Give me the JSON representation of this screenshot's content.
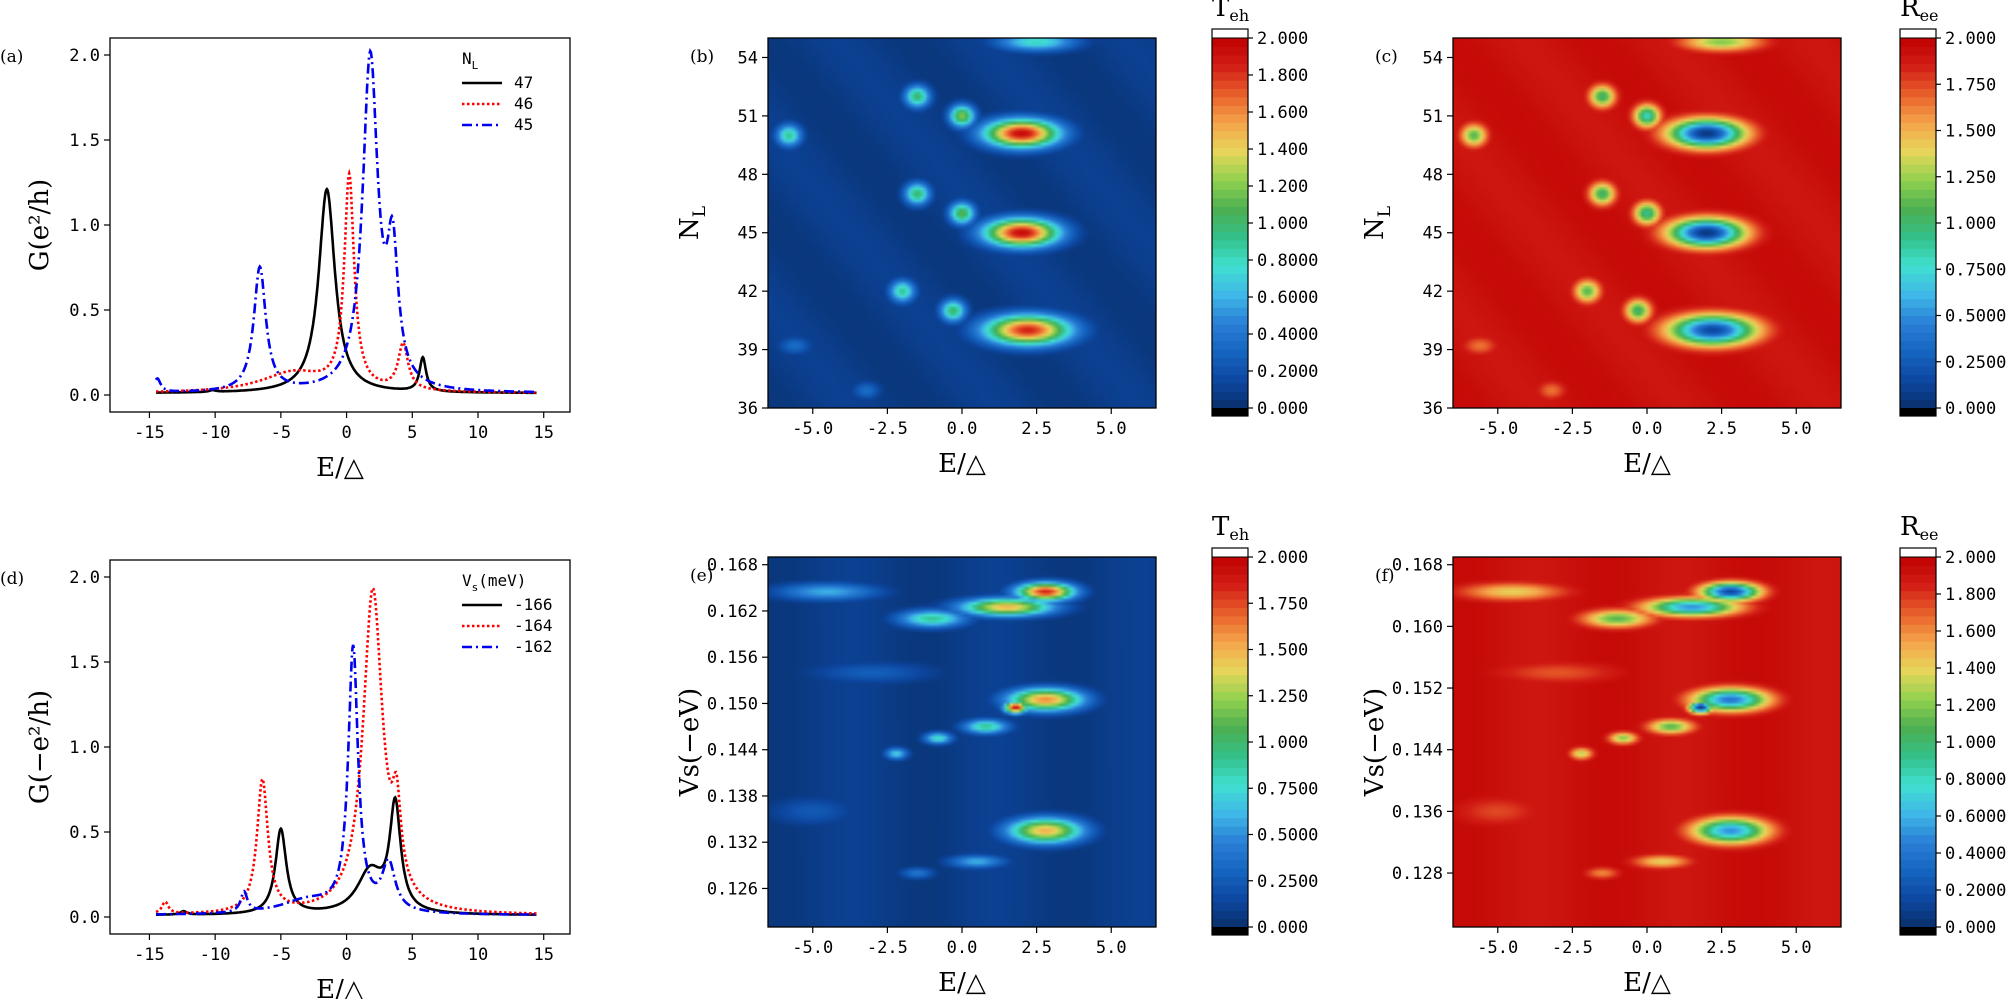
{
  "figure": {
    "name": "transport-figure"
  },
  "colormaps": {
    "jet_stops": [
      "#08306b",
      "#0d47a1",
      "#1565c0",
      "#2a7fd6",
      "#3fb8e8",
      "#40e0d0",
      "#33c08a",
      "#4caf50",
      "#8fd14f",
      "#e6d65a",
      "#f5a54a",
      "#e9622c",
      "#d21f16",
      "#c00000"
    ],
    "clip_low": "#000000",
    "clip_high": "#ffffff"
  },
  "chart_data": [
    {
      "id": "a",
      "type": "line",
      "panel_label": "(a)",
      "xlabel": "E/△",
      "ylabel": "G(e²/h)",
      "xlim": [
        -18,
        17
      ],
      "ylim": [
        -0.1,
        2.1
      ],
      "xticks": [
        "-15",
        "-10",
        "-5",
        "0",
        "5",
        "10",
        "15"
      ],
      "xtick_values": [
        -15,
        -10,
        -5,
        0,
        5,
        10,
        15
      ],
      "yticks": [
        "0.0",
        "0.5",
        "1.0",
        "1.5",
        "2.0"
      ],
      "ytick_values": [
        0,
        0.5,
        1.0,
        1.5,
        2.0
      ],
      "legend_title": "N_L",
      "legend_title_main": "N",
      "legend_title_sub": "L",
      "series": [
        {
          "name": "47",
          "color": "#000000",
          "dash": "solid",
          "base": 0.01,
          "peaks": [
            [
              -1.5,
              1.2,
              0.75
            ],
            [
              5.8,
              0.2,
              0.3
            ],
            [
              -10.2,
              0.01,
              0.3
            ]
          ]
        },
        {
          "name": "46",
          "color": "#ff0000",
          "dash": "dotted",
          "base": 0.01,
          "peaks": [
            [
              0.2,
              1.25,
              0.45
            ],
            [
              4.3,
              0.27,
              0.45
            ],
            [
              -4.0,
              0.12,
              3.0
            ]
          ]
        },
        {
          "name": "45",
          "color": "#0000ee",
          "dash": "dashdot",
          "base": 0.01,
          "peaks": [
            [
              -6.6,
              0.73,
              0.55
            ],
            [
              1.8,
              1.95,
              0.7
            ],
            [
              3.5,
              0.75,
              0.5
            ],
            [
              -14.4,
              0.08,
              0.3
            ]
          ]
        }
      ]
    },
    {
      "id": "d",
      "type": "line",
      "panel_label": "(d)",
      "xlabel": "E/△",
      "ylabel": "G(−e²/h)",
      "xlim": [
        -18,
        17
      ],
      "ylim": [
        -0.1,
        2.1
      ],
      "xticks": [
        "-15",
        "-10",
        "-5",
        "0",
        "5",
        "10",
        "15"
      ],
      "xtick_values": [
        -15,
        -10,
        -5,
        0,
        5,
        10,
        15
      ],
      "yticks": [
        "0.0",
        "0.5",
        "1.0",
        "1.5",
        "2.0"
      ],
      "ytick_values": [
        0,
        0.5,
        1.0,
        1.5,
        2.0
      ],
      "legend_title": "V_s(meV)",
      "legend_title_main": "V",
      "legend_title_sub": "s",
      "legend_title_tail": "(meV)",
      "series": [
        {
          "name": "-166",
          "color": "#000000",
          "dash": "solid",
          "base": 0.01,
          "peaks": [
            [
              -5.0,
              0.5,
              0.5
            ],
            [
              3.7,
              0.62,
              0.5
            ],
            [
              1.8,
              0.25,
              1.2
            ],
            [
              -12.4,
              0.02,
              0.3
            ]
          ]
        },
        {
          "name": "-164",
          "color": "#ff0000",
          "dash": "dotted",
          "base": 0.01,
          "peaks": [
            [
              -6.4,
              0.78,
              0.5
            ],
            [
              2.0,
              1.9,
              0.9
            ],
            [
              3.8,
              0.45,
              0.4
            ],
            [
              -13.8,
              0.07,
              0.3
            ]
          ]
        },
        {
          "name": "-162",
          "color": "#0000ee",
          "dash": "dashdot",
          "base": 0.01,
          "peaks": [
            [
              0.5,
              1.55,
              0.45
            ],
            [
              -7.8,
              0.12,
              0.3
            ],
            [
              3.2,
              0.28,
              0.6
            ],
            [
              -3.0,
              0.08,
              2.5
            ]
          ]
        }
      ]
    },
    {
      "id": "b",
      "type": "heatmap",
      "panel_label": "(b)",
      "invert": false,
      "xlabel": "E/△",
      "ylabel": "N_L",
      "ylabel_main": "N",
      "ylabel_sub": "L",
      "xlim": [
        -6.5,
        6.5
      ],
      "ylim": [
        36,
        55
      ],
      "xticks": [
        "-5.0",
        "-2.5",
        "0.0",
        "2.5",
        "5.0"
      ],
      "xtick_values": [
        -5,
        -2.5,
        0,
        2.5,
        5
      ],
      "yticks": [
        "36",
        "39",
        "42",
        "45",
        "48",
        "51",
        "54"
      ],
      "ytick_values": [
        36,
        39,
        42,
        45,
        48,
        51,
        54
      ],
      "blobs": [
        [
          -5.8,
          50.0,
          0.45,
          0.6,
          0.9
        ],
        [
          -1.5,
          52.0,
          0.45,
          0.6,
          1.0
        ],
        [
          0.0,
          51.0,
          0.45,
          0.6,
          1.2
        ],
        [
          2.0,
          50.1,
          1.3,
          0.75,
          1.95
        ],
        [
          2.5,
          54.8,
          1.4,
          0.5,
          0.8
        ],
        [
          -1.5,
          47.0,
          0.45,
          0.6,
          1.0
        ],
        [
          0.0,
          46.0,
          0.45,
          0.6,
          1.1
        ],
        [
          2.0,
          45.0,
          1.3,
          0.75,
          1.95
        ],
        [
          -2.0,
          42.0,
          0.45,
          0.6,
          0.9
        ],
        [
          -0.3,
          41.0,
          0.45,
          0.6,
          1.0
        ],
        [
          2.2,
          40.0,
          1.5,
          0.8,
          1.85
        ],
        [
          -5.6,
          39.2,
          0.6,
          0.5,
          0.35
        ],
        [
          -3.2,
          36.9,
          0.5,
          0.5,
          0.35
        ]
      ],
      "colorbar": {
        "title_main": "T",
        "title_sub": "eh",
        "vmin": 0,
        "vmax": 2.0,
        "ticks": [
          "2.000",
          "1.800",
          "1.600",
          "1.400",
          "1.200",
          "1.000",
          "0.8000",
          "0.6000",
          "0.4000",
          "0.2000",
          "0.000"
        ],
        "tick_values": [
          2.0,
          1.8,
          1.6,
          1.4,
          1.2,
          1.0,
          0.8,
          0.6,
          0.4,
          0.2,
          0.0
        ]
      }
    },
    {
      "id": "c",
      "type": "heatmap",
      "panel_label": "(c)",
      "invert": true,
      "xlabel": "E/△",
      "ylabel": "N_L",
      "ylabel_main": "N",
      "ylabel_sub": "L",
      "xlim": [
        -6.5,
        6.5
      ],
      "ylim": [
        36,
        55
      ],
      "xticks": [
        "-5.0",
        "-2.5",
        "0.0",
        "2.5",
        "5.0"
      ],
      "xtick_values": [
        -5,
        -2.5,
        0,
        2.5,
        5
      ],
      "yticks": [
        "36",
        "39",
        "42",
        "45",
        "48",
        "51",
        "54"
      ],
      "ytick_values": [
        36,
        39,
        42,
        45,
        48,
        51,
        54
      ],
      "blobs": [
        [
          -5.8,
          50.0,
          0.45,
          0.6,
          0.9
        ],
        [
          -1.5,
          52.0,
          0.45,
          0.6,
          1.0
        ],
        [
          0.0,
          51.0,
          0.45,
          0.6,
          1.2
        ],
        [
          2.0,
          50.1,
          1.3,
          0.75,
          1.95
        ],
        [
          2.5,
          54.8,
          1.4,
          0.5,
          0.8
        ],
        [
          -1.5,
          47.0,
          0.45,
          0.6,
          1.0
        ],
        [
          0.0,
          46.0,
          0.45,
          0.6,
          1.1
        ],
        [
          2.0,
          45.0,
          1.3,
          0.75,
          1.95
        ],
        [
          -2.0,
          42.0,
          0.45,
          0.6,
          0.9
        ],
        [
          -0.3,
          41.0,
          0.45,
          0.6,
          1.0
        ],
        [
          2.2,
          40.0,
          1.5,
          0.8,
          1.85
        ],
        [
          -5.6,
          39.2,
          0.6,
          0.5,
          0.35
        ],
        [
          -3.2,
          36.9,
          0.5,
          0.5,
          0.35
        ]
      ],
      "colorbar": {
        "title_main": "R",
        "title_sub": "ee",
        "vmin": 0,
        "vmax": 2.0,
        "ticks": [
          "2.000",
          "1.750",
          "1.500",
          "1.250",
          "1.000",
          "0.7500",
          "0.5000",
          "0.2500",
          "0.000"
        ],
        "tick_values": [
          2.0,
          1.75,
          1.5,
          1.25,
          1.0,
          0.75,
          0.5,
          0.25,
          0.0
        ]
      }
    },
    {
      "id": "e",
      "type": "heatmap",
      "panel_label": "(e)",
      "invert": false,
      "xlabel": "E/△",
      "ylabel": "Vs(−eV)",
      "xlim": [
        -6.5,
        6.5
      ],
      "ylim": [
        0.121,
        0.169
      ],
      "xticks": [
        "-5.0",
        "-2.5",
        "0.0",
        "2.5",
        "5.0"
      ],
      "xtick_values": [
        -5,
        -2.5,
        0,
        2.5,
        5
      ],
      "yticks": [
        "0.126",
        "0.132",
        "0.138",
        "0.144",
        "0.150",
        "0.156",
        "0.162",
        "0.168"
      ],
      "ytick_values": [
        0.126,
        0.132,
        0.138,
        0.144,
        0.15,
        0.156,
        0.162,
        0.168
      ],
      "blobs": [
        [
          -4.5,
          0.1645,
          1.8,
          0.0012,
          0.6
        ],
        [
          -1.0,
          0.161,
          1.2,
          0.0012,
          0.9
        ],
        [
          1.5,
          0.1625,
          1.6,
          0.0012,
          1.5
        ],
        [
          2.8,
          0.1645,
          1.0,
          0.0012,
          1.85
        ],
        [
          -2.2,
          0.1435,
          0.4,
          0.0008,
          0.7
        ],
        [
          -0.8,
          0.1455,
          0.5,
          0.0008,
          0.8
        ],
        [
          0.8,
          0.147,
          0.8,
          0.001,
          0.9
        ],
        [
          2.8,
          0.1505,
          1.3,
          0.0015,
          1.6
        ],
        [
          1.8,
          0.1495,
          0.4,
          0.0008,
          1.95
        ],
        [
          -1.5,
          0.128,
          0.6,
          0.0008,
          0.4
        ],
        [
          0.5,
          0.1295,
          1.0,
          0.0009,
          0.6
        ],
        [
          2.8,
          0.1335,
          1.3,
          0.0017,
          1.5
        ],
        [
          -3.0,
          0.154,
          2.2,
          0.0015,
          0.28
        ],
        [
          -5.0,
          0.136,
          1.5,
          0.002,
          0.25
        ]
      ],
      "colorbar": {
        "title_main": "T",
        "title_sub": "eh",
        "vmin": 0,
        "vmax": 2.0,
        "ticks": [
          "2.000",
          "1.750",
          "1.500",
          "1.250",
          "1.000",
          "0.7500",
          "0.5000",
          "0.2500",
          "0.000"
        ],
        "tick_values": [
          2.0,
          1.75,
          1.5,
          1.25,
          1.0,
          0.75,
          0.5,
          0.25,
          0.0
        ]
      }
    },
    {
      "id": "f",
      "type": "heatmap",
      "panel_label": "(f)",
      "invert": true,
      "xlabel": "E/△",
      "ylabel": "Vs(−eV)",
      "xlim": [
        -6.5,
        6.5
      ],
      "ylim": [
        0.121,
        0.169
      ],
      "xticks": [
        "-5.0",
        "-2.5",
        "0.0",
        "2.5",
        "5.0"
      ],
      "xtick_values": [
        -5,
        -2.5,
        0,
        2.5,
        5
      ],
      "yticks": [
        "0.128",
        "0.136",
        "0.144",
        "0.152",
        "0.160",
        "0.168"
      ],
      "ytick_values": [
        0.128,
        0.136,
        0.144,
        0.152,
        0.16,
        0.168
      ],
      "blobs": [
        [
          -4.5,
          0.1645,
          1.8,
          0.0012,
          0.6
        ],
        [
          -1.0,
          0.161,
          1.2,
          0.0012,
          0.9
        ],
        [
          1.5,
          0.1625,
          1.6,
          0.0012,
          1.5
        ],
        [
          2.8,
          0.1645,
          1.0,
          0.0012,
          1.85
        ],
        [
          -2.2,
          0.1435,
          0.4,
          0.0008,
          0.7
        ],
        [
          -0.8,
          0.1455,
          0.5,
          0.0008,
          0.8
        ],
        [
          0.8,
          0.147,
          0.8,
          0.001,
          0.9
        ],
        [
          2.8,
          0.1505,
          1.3,
          0.0015,
          1.6
        ],
        [
          1.8,
          0.1495,
          0.4,
          0.0008,
          1.95
        ],
        [
          -1.5,
          0.128,
          0.6,
          0.0008,
          0.4
        ],
        [
          0.5,
          0.1295,
          1.0,
          0.0009,
          0.6
        ],
        [
          2.8,
          0.1335,
          1.3,
          0.0017,
          1.5
        ],
        [
          -3.0,
          0.154,
          2.2,
          0.0015,
          0.28
        ],
        [
          -5.0,
          0.136,
          1.5,
          0.002,
          0.25
        ]
      ],
      "colorbar": {
        "title_main": "R",
        "title_sub": "ee",
        "vmin": 0,
        "vmax": 2.0,
        "ticks": [
          "2.000",
          "1.800",
          "1.600",
          "1.400",
          "1.200",
          "1.000",
          "0.8000",
          "0.6000",
          "0.4000",
          "0.2000",
          "0.000"
        ],
        "tick_values": [
          2.0,
          1.8,
          1.6,
          1.4,
          1.2,
          1.0,
          0.8,
          0.6,
          0.4,
          0.2,
          0.0
        ]
      }
    }
  ]
}
